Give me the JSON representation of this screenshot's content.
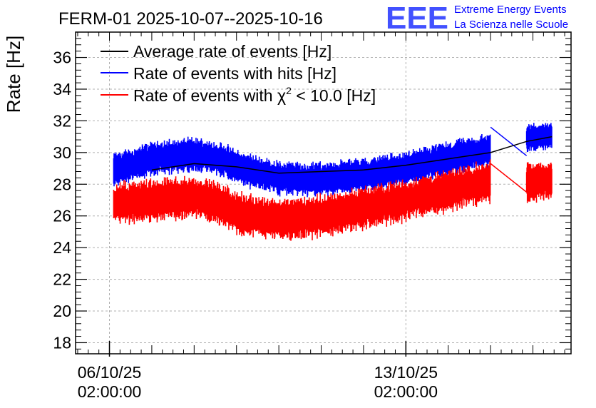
{
  "chart_data": {
    "type": "line",
    "title": "FERM-01 2025-10-07--2025-10-16",
    "xlabel": "",
    "ylabel": "Rate [Hz]",
    "ylim": [
      17.3,
      37.6
    ],
    "y_ticks": [
      18,
      20,
      22,
      24,
      26,
      28,
      30,
      32,
      34,
      36
    ],
    "grid": true,
    "legend_position": "top-left",
    "x_ticks": [
      {
        "date": "06/10/25",
        "time": "02:00:00",
        "day": 0
      },
      {
        "date": "13/10/25",
        "time": "02:00:00",
        "day": 7
      }
    ],
    "xlim_days": [
      -0.8,
      10.9
    ],
    "series": [
      {
        "name": "Average rate of events [Hz]",
        "color": "#000000",
        "points": [
          [
            1.0,
            28.9
          ],
          [
            2.0,
            29.3
          ],
          [
            3.0,
            29.1
          ],
          [
            4.0,
            28.7
          ],
          [
            5.0,
            28.8
          ],
          [
            6.0,
            28.9
          ],
          [
            7.0,
            29.2
          ],
          [
            8.0,
            29.6
          ],
          [
            9.0,
            30.0
          ],
          [
            9.85,
            30.7
          ],
          [
            10.45,
            31.0
          ]
        ]
      },
      {
        "name": "Rate of events with hits [Hz]",
        "color": "#0000ff",
        "segments": [
          {
            "start_day": 0.1,
            "end_day": 9.0,
            "profile": [
              [
                0.1,
                28.9
              ],
              [
                1.0,
                29.6
              ],
              [
                2.0,
                29.9
              ],
              [
                2.6,
                29.6
              ],
              [
                3.2,
                28.9
              ],
              [
                4.0,
                28.4
              ],
              [
                5.0,
                28.3
              ],
              [
                6.0,
                28.6
              ],
              [
                7.0,
                29.0
              ],
              [
                8.0,
                29.6
              ],
              [
                9.0,
                30.2
              ]
            ],
            "band_halfwidth": 1.2
          },
          {
            "start_day": 9.85,
            "end_day": 10.45,
            "profile": [
              [
                9.85,
                30.9
              ],
              [
                10.45,
                31.1
              ]
            ],
            "band_halfwidth": 1.0
          }
        ],
        "connector": [
          [
            9.0,
            31.6
          ],
          [
            9.85,
            29.8
          ]
        ]
      },
      {
        "name": "Rate of events with χ² < 10.0 [Hz]",
        "name_prefix": "Rate of events with ",
        "name_chi": "χ",
        "name_sup": "2",
        "name_suffix": " < 10.0 [Hz]",
        "color": "#ff0000",
        "segments": [
          {
            "start_day": 0.1,
            "end_day": 9.0,
            "profile": [
              [
                0.1,
                26.8
              ],
              [
                1.0,
                27.0
              ],
              [
                2.0,
                27.2
              ],
              [
                2.6,
                26.8
              ],
              [
                3.2,
                26.0
              ],
              [
                4.0,
                25.8
              ],
              [
                5.0,
                26.0
              ],
              [
                6.0,
                26.5
              ],
              [
                7.0,
                27.0
              ],
              [
                8.0,
                27.6
              ],
              [
                9.0,
                28.2
              ]
            ],
            "band_halfwidth": 1.5
          },
          {
            "start_day": 9.85,
            "end_day": 10.45,
            "profile": [
              [
                9.85,
                28.1
              ],
              [
                10.45,
                28.3
              ]
            ],
            "band_halfwidth": 1.4
          }
        ],
        "connector": [
          [
            9.0,
            29.3
          ],
          [
            9.85,
            27.5
          ]
        ]
      }
    ]
  },
  "logo": {
    "letters": "EEE",
    "line1": "Extreme Energy Events",
    "line2": "La Scienza nelle Scuole",
    "color": "#0000ff"
  }
}
